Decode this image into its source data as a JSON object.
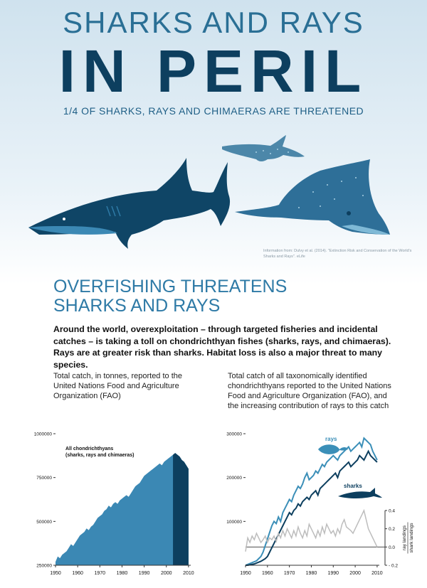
{
  "header": {
    "title_line1": "SHARKS AND RAYS",
    "title_line2": "IN PERIL",
    "subtitle": "1/4 OF SHARKS, RAYS AND CHIMAERAS ARE THREATENED"
  },
  "credit": "Information from: Dulvy et al. (2014). \"Extinction Risk and Conservation of the World's Sharks and Rays\". eLife",
  "section": {
    "heading_line1": "OVERFISHING THREATENS",
    "heading_line2": "SHARKS AND RAYS",
    "lead": "Around the world, overexploitation – through targeted fisheries and incidental catches – is taking a toll on chondrichthyan fishes (sharks, rays, and chimaeras).  Rays are at greater risk than sharks.  Habitat loss is also a major threat to many species."
  },
  "captions": {
    "left": "Total catch, in tonnes, reported to the United Nations Food and Agriculture Organization (FAO)",
    "right": "Total catch of all taxonomically identified chondrichthyans reported to the United Nations Food and Agriculture Organization (FAO), and the increasing contribution of rays to this catch"
  },
  "colors": {
    "area": "#3b88b4",
    "area_dark": "#0d3f5f",
    "rays": "#3b8fb8",
    "sharks": "#0d3f5f",
    "ratio": "#bdbdbd",
    "title_dark": "#0d3f5f",
    "title_light": "#2a6f95"
  },
  "chart_data": [
    {
      "type": "area",
      "title": "",
      "annotation": "All chondrichthyans (sharks, rays and chimaeras)",
      "xlim": [
        1950,
        2011
      ],
      "ylim": [
        250000,
        1000000
      ],
      "x_ticks": [
        "1950",
        "1960",
        "1970",
        "1980",
        "1990",
        "2000",
        "2010"
      ],
      "y_ticks": [
        "250000",
        "500000",
        "750000",
        "1000000"
      ],
      "x": [
        1950,
        1951,
        1952,
        1953,
        1954,
        1955,
        1956,
        1957,
        1958,
        1959,
        1960,
        1961,
        1962,
        1963,
        1964,
        1965,
        1966,
        1967,
        1968,
        1969,
        1970,
        1971,
        1972,
        1973,
        1974,
        1975,
        1976,
        1977,
        1978,
        1979,
        1980,
        1981,
        1982,
        1983,
        1984,
        1985,
        1986,
        1987,
        1988,
        1989,
        1990,
        1991,
        1992,
        1993,
        1994,
        1995,
        1996,
        1997,
        1998,
        1999,
        2000,
        2001,
        2002,
        2003,
        2004,
        2005,
        2006,
        2007,
        2008,
        2009,
        2010
      ],
      "series": [
        {
          "values": [
            270000,
            300000,
            290000,
            310000,
            320000,
            330000,
            350000,
            370000,
            360000,
            380000,
            400000,
            420000,
            430000,
            440000,
            460000,
            450000,
            470000,
            480000,
            500000,
            520000,
            530000,
            540000,
            560000,
            570000,
            590000,
            580000,
            600000,
            610000,
            600000,
            620000,
            630000,
            640000,
            650000,
            640000,
            660000,
            680000,
            700000,
            710000,
            720000,
            740000,
            760000,
            770000,
            780000,
            790000,
            800000,
            810000,
            820000,
            830000,
            820000,
            840000,
            850000,
            860000,
            870000,
            880000,
            890000,
            880000,
            870000,
            850000,
            840000,
            820000,
            800000
          ],
          "highlight_from": 2003
        }
      ]
    },
    {
      "type": "line",
      "title": "",
      "xlim": [
        1950,
        2011
      ],
      "ylim": [
        0,
        300000
      ],
      "y2lim": [
        -0.2,
        0.4
      ],
      "x_ticks": [
        "1950",
        "1960",
        "1970",
        "1980",
        "1990",
        "2000",
        "2010"
      ],
      "y_ticks": [
        "100000",
        "200000",
        "300000"
      ],
      "y2_ticks": [
        "- 0.2",
        "0.0",
        "0.2",
        "0.4"
      ],
      "y2label_line1": "ray landings",
      "y2label_line2": "shark landings",
      "x": [
        1950,
        1951,
        1952,
        1953,
        1954,
        1955,
        1956,
        1957,
        1958,
        1959,
        1960,
        1961,
        1962,
        1963,
        1964,
        1965,
        1966,
        1967,
        1968,
        1969,
        1970,
        1971,
        1972,
        1973,
        1974,
        1975,
        1976,
        1977,
        1978,
        1979,
        1980,
        1981,
        1982,
        1983,
        1984,
        1985,
        1986,
        1987,
        1988,
        1989,
        1990,
        1991,
        1992,
        1993,
        1994,
        1995,
        1996,
        1997,
        1998,
        1999,
        2000,
        2001,
        2002,
        2003,
        2004,
        2005,
        2006,
        2007,
        2008,
        2009,
        2010
      ],
      "series": [
        {
          "name": "rays",
          "axis": "left",
          "values": [
            0,
            2000,
            4000,
            6000,
            8000,
            10000,
            15000,
            20000,
            30000,
            45000,
            60000,
            75000,
            90000,
            100000,
            95000,
            110000,
            100000,
            120000,
            130000,
            140000,
            150000,
            145000,
            160000,
            170000,
            180000,
            175000,
            185000,
            200000,
            210000,
            195000,
            200000,
            205000,
            215000,
            210000,
            220000,
            230000,
            225000,
            235000,
            240000,
            245000,
            250000,
            245000,
            240000,
            250000,
            255000,
            260000,
            265000,
            270000,
            260000,
            265000,
            270000,
            275000,
            280000,
            270000,
            290000,
            285000,
            280000,
            275000,
            260000,
            250000,
            240000
          ]
        },
        {
          "name": "sharks",
          "axis": "left",
          "values": [
            0,
            0,
            1000,
            2000,
            3000,
            5000,
            7000,
            9000,
            12000,
            15000,
            20000,
            30000,
            40000,
            50000,
            60000,
            70000,
            80000,
            90000,
            100000,
            110000,
            120000,
            115000,
            125000,
            130000,
            140000,
            135000,
            145000,
            150000,
            155000,
            150000,
            160000,
            165000,
            170000,
            160000,
            175000,
            180000,
            185000,
            190000,
            195000,
            200000,
            205000,
            210000,
            200000,
            215000,
            220000,
            225000,
            230000,
            235000,
            225000,
            230000,
            235000,
            240000,
            250000,
            245000,
            240000,
            250000,
            260000,
            250000,
            245000,
            240000,
            235000
          ]
        },
        {
          "axis": "right",
          "values": [
            -0.05,
            0.1,
            0.05,
            0.12,
            0.08,
            0.15,
            0.1,
            0.05,
            0.08,
            0.12,
            0.05,
            0.1,
            0.08,
            0.12,
            0.06,
            0.15,
            0.1,
            0.18,
            0.12,
            0.2,
            0.15,
            0.1,
            0.18,
            0.12,
            0.22,
            0.15,
            0.1,
            0.18,
            0.12,
            0.25,
            0.2,
            0.15,
            0.1,
            0.18,
            0.12,
            0.22,
            0.15,
            0.25,
            0.2,
            0.15,
            0.18,
            0.12,
            0.2,
            0.15,
            0.25,
            0.3,
            0.22,
            0.2,
            0.18,
            0.15,
            0.2,
            0.25,
            0.3,
            0.35,
            0.4,
            0.3,
            0.2,
            0.15,
            0.1,
            0.05,
            0.0
          ]
        }
      ]
    }
  ]
}
